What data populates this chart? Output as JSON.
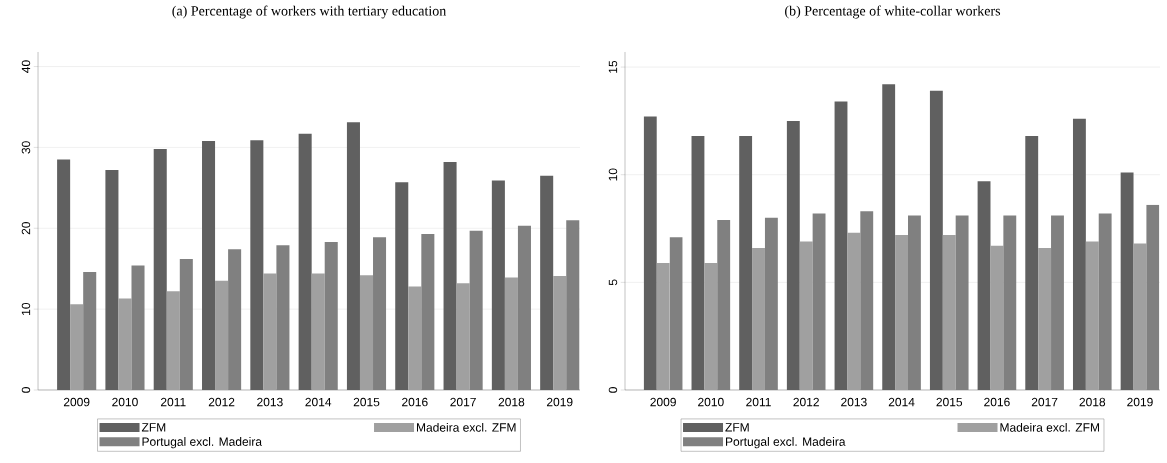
{
  "chart_data": [
    {
      "type": "bar",
      "title": "(a) Percentage of workers with tertiary education",
      "categories": [
        "2009",
        "2010",
        "2011",
        "2012",
        "2013",
        "2014",
        "2015",
        "2016",
        "2017",
        "2018",
        "2019"
      ],
      "series": [
        {
          "name": "ZFM",
          "color": "#606060",
          "values": [
            28.5,
            27.2,
            29.8,
            30.8,
            30.9,
            31.7,
            33.1,
            25.7,
            28.2,
            25.9,
            26.5
          ]
        },
        {
          "name": "Madeira excl. ZFM",
          "color": "#a0a0a0",
          "values": [
            10.6,
            11.3,
            12.2,
            13.5,
            14.4,
            14.4,
            14.2,
            12.8,
            13.2,
            13.9,
            14.1
          ]
        },
        {
          "name": "Portugal excl. Madeira",
          "color": "#808080",
          "values": [
            14.6,
            15.4,
            16.2,
            17.4,
            17.9,
            18.3,
            18.9,
            19.3,
            19.7,
            20.3,
            21.0
          ]
        }
      ],
      "ylim": [
        0,
        41.8
      ],
      "yticks": [
        0,
        10,
        20,
        30,
        40
      ],
      "grid": "y",
      "legend": "bottom"
    },
    {
      "type": "bar",
      "title": "(b) Percentage of white-collar workers",
      "categories": [
        "2009",
        "2010",
        "2011",
        "2012",
        "2013",
        "2014",
        "2015",
        "2016",
        "2017",
        "2018",
        "2019"
      ],
      "series": [
        {
          "name": "ZFM",
          "color": "#606060",
          "values": [
            12.7,
            11.8,
            11.8,
            12.5,
            13.4,
            14.2,
            13.9,
            9.7,
            11.8,
            12.6,
            10.1
          ]
        },
        {
          "name": "Madeira excl. ZFM",
          "color": "#a0a0a0",
          "values": [
            5.9,
            5.9,
            6.6,
            6.9,
            7.3,
            7.2,
            7.2,
            6.7,
            6.6,
            6.9,
            6.8
          ]
        },
        {
          "name": "Portugal excl. Madeira",
          "color": "#808080",
          "values": [
            7.1,
            7.9,
            8.0,
            8.2,
            8.3,
            8.1,
            8.1,
            8.1,
            8.1,
            8.2,
            8.6
          ]
        }
      ],
      "ylim": [
        0,
        15.7
      ],
      "yticks": [
        0,
        5,
        10,
        15
      ],
      "grid": "y",
      "legend": "bottom"
    }
  ]
}
